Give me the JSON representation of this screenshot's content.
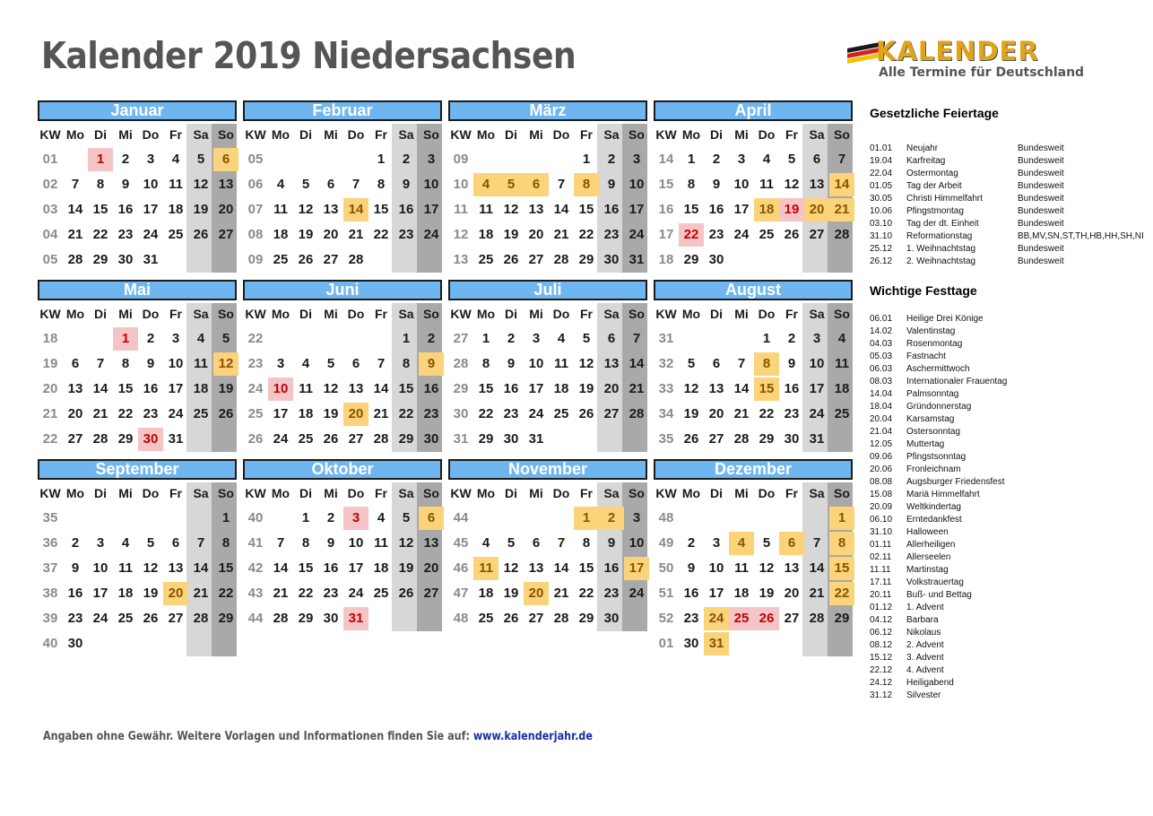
{
  "title": "Kalender 2019 Niedersachsen",
  "logo": {
    "word": "KALENDER",
    "tagline": "Alle Termine für Deutschland",
    "flag_colors": [
      "#1a1a1a",
      "#d62020",
      "#f2c400"
    ]
  },
  "weekday_headers": [
    "KW",
    "Mo",
    "Di",
    "Mi",
    "Do",
    "Fr",
    "Sa",
    "So"
  ],
  "colors": {
    "month_header": "#6fb5ef",
    "saturday_column": "#d7d7d7",
    "sunday_column": "#a9a9a9",
    "holiday": "#f5c4c6",
    "festival": "#fbd37a"
  },
  "months": [
    {
      "name": "Januar",
      "weeks": [
        [
          "01",
          "",
          "1",
          "2",
          "3",
          "4",
          "5",
          "6"
        ],
        [
          "02",
          "7",
          "8",
          "9",
          "10",
          "11",
          "12",
          "13"
        ],
        [
          "03",
          "14",
          "15",
          "16",
          "17",
          "18",
          "19",
          "20"
        ],
        [
          "04",
          "21",
          "22",
          "23",
          "24",
          "25",
          "26",
          "27"
        ],
        [
          "05",
          "28",
          "29",
          "30",
          "31",
          "",
          "",
          ""
        ]
      ],
      "holidays": [
        "1"
      ],
      "festivals": [
        "6"
      ]
    },
    {
      "name": "Februar",
      "weeks": [
        [
          "05",
          "",
          "",
          "",
          "",
          "1",
          "2",
          "3"
        ],
        [
          "06",
          "4",
          "5",
          "6",
          "7",
          "8",
          "9",
          "10"
        ],
        [
          "07",
          "11",
          "12",
          "13",
          "14",
          "15",
          "16",
          "17"
        ],
        [
          "08",
          "18",
          "19",
          "20",
          "21",
          "22",
          "23",
          "24"
        ],
        [
          "09",
          "25",
          "26",
          "27",
          "28",
          "",
          "",
          ""
        ]
      ],
      "holidays": [],
      "festivals": [
        "14"
      ]
    },
    {
      "name": "März",
      "weeks": [
        [
          "09",
          "",
          "",
          "",
          "",
          "1",
          "2",
          "3"
        ],
        [
          "10",
          "4",
          "5",
          "6",
          "7",
          "8",
          "9",
          "10"
        ],
        [
          "11",
          "11",
          "12",
          "13",
          "14",
          "15",
          "16",
          "17"
        ],
        [
          "12",
          "18",
          "19",
          "20",
          "21",
          "22",
          "23",
          "24"
        ],
        [
          "13",
          "25",
          "26",
          "27",
          "28",
          "29",
          "30",
          "31"
        ]
      ],
      "holidays": [],
      "festivals": [
        "4",
        "5",
        "6",
        "8"
      ]
    },
    {
      "name": "April",
      "weeks": [
        [
          "14",
          "1",
          "2",
          "3",
          "4",
          "5",
          "6",
          "7"
        ],
        [
          "15",
          "8",
          "9",
          "10",
          "11",
          "12",
          "13",
          "14"
        ],
        [
          "16",
          "15",
          "16",
          "17",
          "18",
          "19",
          "20",
          "21"
        ],
        [
          "17",
          "22",
          "23",
          "24",
          "25",
          "26",
          "27",
          "28"
        ],
        [
          "18",
          "29",
          "30",
          "",
          "",
          "",
          "",
          ""
        ]
      ],
      "holidays": [
        "19",
        "22"
      ],
      "festivals": [
        "14",
        "18",
        "20",
        "21"
      ]
    },
    {
      "name": "Mai",
      "weeks": [
        [
          "18",
          "",
          "",
          "1",
          "2",
          "3",
          "4",
          "5"
        ],
        [
          "19",
          "6",
          "7",
          "8",
          "9",
          "10",
          "11",
          "12"
        ],
        [
          "20",
          "13",
          "14",
          "15",
          "16",
          "17",
          "18",
          "19"
        ],
        [
          "21",
          "20",
          "21",
          "22",
          "23",
          "24",
          "25",
          "26"
        ],
        [
          "22",
          "27",
          "28",
          "29",
          "30",
          "31",
          "",
          ""
        ]
      ],
      "holidays": [
        "1",
        "30"
      ],
      "festivals": [
        "12"
      ]
    },
    {
      "name": "Juni",
      "weeks": [
        [
          "22",
          "",
          "",
          "",
          "",
          "",
          "1",
          "2"
        ],
        [
          "23",
          "3",
          "4",
          "5",
          "6",
          "7",
          "8",
          "9"
        ],
        [
          "24",
          "10",
          "11",
          "12",
          "13",
          "14",
          "15",
          "16"
        ],
        [
          "25",
          "17",
          "18",
          "19",
          "20",
          "21",
          "22",
          "23"
        ],
        [
          "26",
          "24",
          "25",
          "26",
          "27",
          "28",
          "29",
          "30"
        ]
      ],
      "holidays": [
        "10"
      ],
      "festivals": [
        "9",
        "20"
      ]
    },
    {
      "name": "Juli",
      "weeks": [
        [
          "27",
          "1",
          "2",
          "3",
          "4",
          "5",
          "6",
          "7"
        ],
        [
          "28",
          "8",
          "9",
          "10",
          "11",
          "12",
          "13",
          "14"
        ],
        [
          "29",
          "15",
          "16",
          "17",
          "18",
          "19",
          "20",
          "21"
        ],
        [
          "30",
          "22",
          "23",
          "24",
          "25",
          "26",
          "27",
          "28"
        ],
        [
          "31",
          "29",
          "30",
          "31",
          "",
          "",
          "",
          ""
        ]
      ],
      "holidays": [],
      "festivals": []
    },
    {
      "name": "August",
      "weeks": [
        [
          "31",
          "",
          "",
          "",
          "1",
          "2",
          "3",
          "4"
        ],
        [
          "32",
          "5",
          "6",
          "7",
          "8",
          "9",
          "10",
          "11"
        ],
        [
          "33",
          "12",
          "13",
          "14",
          "15",
          "16",
          "17",
          "18"
        ],
        [
          "34",
          "19",
          "20",
          "21",
          "22",
          "23",
          "24",
          "25"
        ],
        [
          "35",
          "26",
          "27",
          "28",
          "29",
          "30",
          "31",
          ""
        ]
      ],
      "holidays": [],
      "festivals": [
        "8",
        "15"
      ]
    },
    {
      "name": "September",
      "weeks": [
        [
          "35",
          "",
          "",
          "",
          "",
          "",
          "",
          "1"
        ],
        [
          "36",
          "2",
          "3",
          "4",
          "5",
          "6",
          "7",
          "8"
        ],
        [
          "37",
          "9",
          "10",
          "11",
          "12",
          "13",
          "14",
          "15"
        ],
        [
          "38",
          "16",
          "17",
          "18",
          "19",
          "20",
          "21",
          "22"
        ],
        [
          "39",
          "23",
          "24",
          "25",
          "26",
          "27",
          "28",
          "29"
        ],
        [
          "40",
          "30",
          "",
          "",
          "",
          "",
          "",
          ""
        ]
      ],
      "holidays": [],
      "festivals": [
        "20"
      ]
    },
    {
      "name": "Oktober",
      "weeks": [
        [
          "40",
          "",
          "1",
          "2",
          "3",
          "4",
          "5",
          "6"
        ],
        [
          "41",
          "7",
          "8",
          "9",
          "10",
          "11",
          "12",
          "13"
        ],
        [
          "42",
          "14",
          "15",
          "16",
          "17",
          "18",
          "19",
          "20"
        ],
        [
          "43",
          "21",
          "22",
          "23",
          "24",
          "25",
          "26",
          "27"
        ],
        [
          "44",
          "28",
          "29",
          "30",
          "31",
          "",
          "",
          ""
        ]
      ],
      "holidays": [
        "3",
        "31"
      ],
      "festivals": [
        "6"
      ]
    },
    {
      "name": "November",
      "weeks": [
        [
          "44",
          "",
          "",
          "",
          "",
          "1",
          "2",
          "3"
        ],
        [
          "45",
          "4",
          "5",
          "6",
          "7",
          "8",
          "9",
          "10"
        ],
        [
          "46",
          "11",
          "12",
          "13",
          "14",
          "15",
          "16",
          "17"
        ],
        [
          "47",
          "18",
          "19",
          "20",
          "21",
          "22",
          "23",
          "24"
        ],
        [
          "48",
          "25",
          "26",
          "27",
          "28",
          "29",
          "30",
          ""
        ]
      ],
      "holidays": [],
      "festivals": [
        "1",
        "2",
        "11",
        "17",
        "20"
      ]
    },
    {
      "name": "Dezember",
      "weeks": [
        [
          "48",
          "",
          "",
          "",
          "",
          "",
          "",
          "1"
        ],
        [
          "49",
          "2",
          "3",
          "4",
          "5",
          "6",
          "7",
          "8"
        ],
        [
          "50",
          "9",
          "10",
          "11",
          "12",
          "13",
          "14",
          "15"
        ],
        [
          "51",
          "16",
          "17",
          "18",
          "19",
          "20",
          "21",
          "22"
        ],
        [
          "52",
          "23",
          "24",
          "25",
          "26",
          "27",
          "28",
          "29"
        ],
        [
          "01",
          "30",
          "31",
          "",
          "",
          "",
          "",
          ""
        ]
      ],
      "holidays": [
        "25",
        "26"
      ],
      "festivals": [
        "1",
        "4",
        "6",
        "8",
        "15",
        "22",
        "24",
        "31"
      ]
    }
  ],
  "public_holidays": {
    "heading": "Gesetzliche Feiertage",
    "items": [
      {
        "date": "01.01",
        "name": "Neujahr",
        "scope": "Bundesweit"
      },
      {
        "date": "19.04",
        "name": "Karfreitag",
        "scope": "Bundesweit"
      },
      {
        "date": "22.04",
        "name": "Ostermontag",
        "scope": "Bundesweit"
      },
      {
        "date": "01.05",
        "name": "Tag der Arbeit",
        "scope": "Bundesweit"
      },
      {
        "date": "30.05",
        "name": "Christi Himmelfahrt",
        "scope": "Bundesweit"
      },
      {
        "date": "10.06",
        "name": "Pfingstmontag",
        "scope": "Bundesweit"
      },
      {
        "date": "03.10",
        "name": "Tag der dt. Einheit",
        "scope": "Bundesweit"
      },
      {
        "date": "31.10",
        "name": "Reformationstag",
        "scope": "BB,MV,SN,ST,TH,HB,HH,SH,NI"
      },
      {
        "date": "25.12",
        "name": "1. Weihnachtstag",
        "scope": "Bundesweit"
      },
      {
        "date": "26.12",
        "name": "2. Weihnachtstag",
        "scope": "Bundesweit"
      }
    ]
  },
  "festivals": {
    "heading": "Wichtige Festtage",
    "items": [
      {
        "date": "06.01",
        "name": "Heilige Drei Könige"
      },
      {
        "date": "14.02",
        "name": "Valentinstag"
      },
      {
        "date": "04.03",
        "name": "Rosenmontag"
      },
      {
        "date": "05.03",
        "name": "Fastnacht"
      },
      {
        "date": "06.03",
        "name": "Aschermittwoch"
      },
      {
        "date": "08.03",
        "name": "Internationaler Frauentag"
      },
      {
        "date": "14.04",
        "name": "Palmsonntag"
      },
      {
        "date": "18.04",
        "name": "Gründonnerstag"
      },
      {
        "date": "20.04",
        "name": "Karsamstag"
      },
      {
        "date": "21.04",
        "name": "Ostersonntag"
      },
      {
        "date": "12.05",
        "name": "Muttertag"
      },
      {
        "date": "09.06",
        "name": "Pfingstsonntag"
      },
      {
        "date": "20.06",
        "name": "Fronleichnam"
      },
      {
        "date": "08.08",
        "name": "Augsburger Friedensfest"
      },
      {
        "date": "15.08",
        "name": "Mariä Himmelfahrt"
      },
      {
        "date": "20.09",
        "name": "Weltkindertag"
      },
      {
        "date": "06.10",
        "name": "Erntedankfest"
      },
      {
        "date": "31.10",
        "name": "Halloween"
      },
      {
        "date": "01.11",
        "name": "Allerheiligen"
      },
      {
        "date": "02.11",
        "name": "Allerseelen"
      },
      {
        "date": "11.11",
        "name": "Martinstag"
      },
      {
        "date": "17.11",
        "name": "Volkstrauertag"
      },
      {
        "date": "20.11",
        "name": "Buß- und Bettag"
      },
      {
        "date": "01.12",
        "name": "1. Advent"
      },
      {
        "date": "04.12",
        "name": "Barbara"
      },
      {
        "date": "06.12",
        "name": "Nikolaus"
      },
      {
        "date": "08.12",
        "name": "2. Advent"
      },
      {
        "date": "15.12",
        "name": "3. Advent"
      },
      {
        "date": "22.12",
        "name": "4. Advent"
      },
      {
        "date": "24.12",
        "name": "Heiligabend"
      },
      {
        "date": "31.12",
        "name": "Silvester"
      }
    ]
  },
  "footer": {
    "text": "Angaben ohne Gewähr. Weitere Vorlagen und Informationen finden Sie auf: ",
    "link": "www.kalenderjahr.de"
  }
}
